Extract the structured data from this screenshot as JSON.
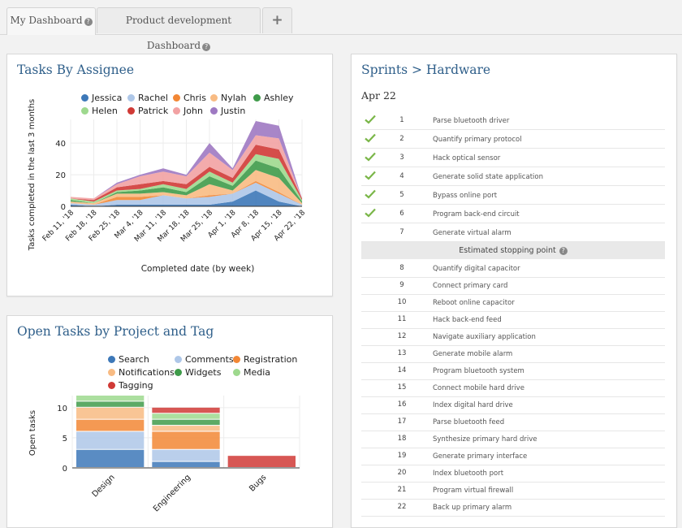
{
  "tabs": [
    {
      "label": "My Dashboard",
      "active": true
    },
    {
      "label": "Product development Dashboard",
      "active": false
    },
    {
      "label": "+",
      "active": false
    }
  ],
  "colors": {
    "Jessica": "#3d78b8",
    "Rachel": "#aec7e8",
    "Chris": "#f28735",
    "Nylah": "#f8bb83",
    "Ashley": "#3f9b4a",
    "Helen": "#9ed98e",
    "Patrick": "#d03a36",
    "John": "#f2a2a3",
    "Justin": "#9e79c2",
    "accent": "#2f5f8a",
    "check": "#7ab648"
  },
  "tasks_panel": {
    "title": "Tasks By Assignee",
    "legend": [
      "Jessica",
      "Rachel",
      "Chris",
      "Nylah",
      "Ashley",
      "Helen",
      "Patrick",
      "John",
      "Justin"
    ]
  },
  "open_panel": {
    "title": "Open Tasks by Project and Tag",
    "legend": [
      {
        "label": "Search",
        "color": "#3d78b8"
      },
      {
        "label": "Comments",
        "color": "#aec7e8"
      },
      {
        "label": "Registration",
        "color": "#f28735"
      },
      {
        "label": "Notifications",
        "color": "#f8bb83"
      },
      {
        "label": "Widgets",
        "color": "#3f9b4a"
      },
      {
        "label": "Media",
        "color": "#9ed98e"
      },
      {
        "label": "Tagging",
        "color": "#d03a36"
      }
    ]
  },
  "chart_data": [
    {
      "type": "area",
      "title": "Tasks By Assignee",
      "xlabel": "Completed date (by week)",
      "ylabel": "Tasks completed in the last 3 months",
      "ylim": [
        0,
        55
      ],
      "yticks": [
        0,
        20,
        40
      ],
      "x": [
        "Feb 11, '18",
        "Feb 18, '18",
        "Feb 25, '18",
        "Mar 4, '18",
        "Mar 11, '18",
        "Mar 18, '18",
        "Mar 25, '18",
        "Apr 1, '18",
        "Apr 8, '18",
        "Apr 15, '18",
        "Apr 22, '18"
      ],
      "series": [
        {
          "name": "Jessica",
          "values": [
            1,
            0,
            1,
            1,
            1,
            1,
            1,
            3,
            10,
            3,
            0
          ]
        },
        {
          "name": "Rachel",
          "values": [
            1,
            1,
            3,
            3,
            6,
            4,
            5,
            5,
            5,
            5,
            1
          ]
        },
        {
          "name": "Chris",
          "values": [
            0,
            0,
            2,
            2,
            0,
            0,
            1,
            0,
            1,
            1,
            0
          ]
        },
        {
          "name": "Nylah",
          "values": [
            1,
            1,
            2,
            2,
            2,
            2,
            7,
            2,
            7,
            9,
            1
          ]
        },
        {
          "name": "Ashley",
          "values": [
            1,
            0,
            1,
            2,
            3,
            2,
            5,
            3,
            6,
            6,
            1
          ]
        },
        {
          "name": "Helen",
          "values": [
            1,
            1,
            1,
            1,
            2,
            2,
            3,
            2,
            4,
            6,
            1
          ]
        },
        {
          "name": "Patrick",
          "values": [
            0,
            1,
            2,
            3,
            2,
            3,
            3,
            3,
            6,
            6,
            1
          ]
        },
        {
          "name": "John",
          "values": [
            1,
            1,
            2,
            5,
            6,
            5,
            9,
            5,
            6,
            7,
            0
          ]
        },
        {
          "name": "Justin",
          "values": [
            0,
            0,
            1,
            1,
            2,
            1,
            6,
            1,
            9,
            8,
            0
          ]
        }
      ]
    },
    {
      "type": "bar",
      "title": "Open Tasks by Project and Tag",
      "ylabel": "Open tasks",
      "ylim": [
        0,
        12
      ],
      "yticks": [
        0,
        5,
        10
      ],
      "categories": [
        "Design",
        "Engineering",
        "Bugs"
      ],
      "series": [
        {
          "name": "Search",
          "values": [
            3,
            1,
            0
          ]
        },
        {
          "name": "Comments",
          "values": [
            3,
            2,
            0
          ]
        },
        {
          "name": "Registration",
          "values": [
            2,
            3,
            0
          ]
        },
        {
          "name": "Notifications",
          "values": [
            2,
            1,
            0
          ]
        },
        {
          "name": "Widgets",
          "values": [
            1,
            1,
            0
          ]
        },
        {
          "name": "Media",
          "values": [
            1,
            1,
            0
          ]
        },
        {
          "name": "Tagging",
          "values": [
            0,
            1,
            2
          ]
        }
      ]
    }
  ],
  "sprint": {
    "title": "Sprints > Hardware",
    "date": "Apr 22",
    "stop_label": "Estimated stopping point",
    "done": [
      {
        "num": "1",
        "name": "Parse bluetooth driver"
      },
      {
        "num": "2",
        "name": "Quantify primary protocol"
      },
      {
        "num": "3",
        "name": "Hack optical sensor"
      },
      {
        "num": "4",
        "name": "Generate solid state application"
      },
      {
        "num": "5",
        "name": "Bypass online port"
      },
      {
        "num": "6",
        "name": "Program back-end circuit"
      }
    ],
    "open_before": [
      {
        "num": "7",
        "name": "Generate virtual alarm"
      }
    ],
    "after": [
      {
        "num": "8",
        "name": "Quantify digital capacitor"
      },
      {
        "num": "9",
        "name": "Connect primary card"
      },
      {
        "num": "10",
        "name": "Reboot online capacitor"
      },
      {
        "num": "11",
        "name": "Hack back-end feed"
      },
      {
        "num": "12",
        "name": "Navigate auxiliary application"
      },
      {
        "num": "13",
        "name": "Generate mobile alarm"
      },
      {
        "num": "14",
        "name": "Program bluetooth system"
      },
      {
        "num": "15",
        "name": "Connect mobile hard drive"
      },
      {
        "num": "16",
        "name": "Index digital hard drive"
      },
      {
        "num": "17",
        "name": "Parse bluetooth feed"
      },
      {
        "num": "18",
        "name": "Synthesize primary hard drive"
      },
      {
        "num": "19",
        "name": "Generate primary interface"
      },
      {
        "num": "20",
        "name": "Index bluetooth port"
      },
      {
        "num": "21",
        "name": "Program virtual firewall"
      },
      {
        "num": "22",
        "name": "Back up primary alarm"
      }
    ]
  }
}
